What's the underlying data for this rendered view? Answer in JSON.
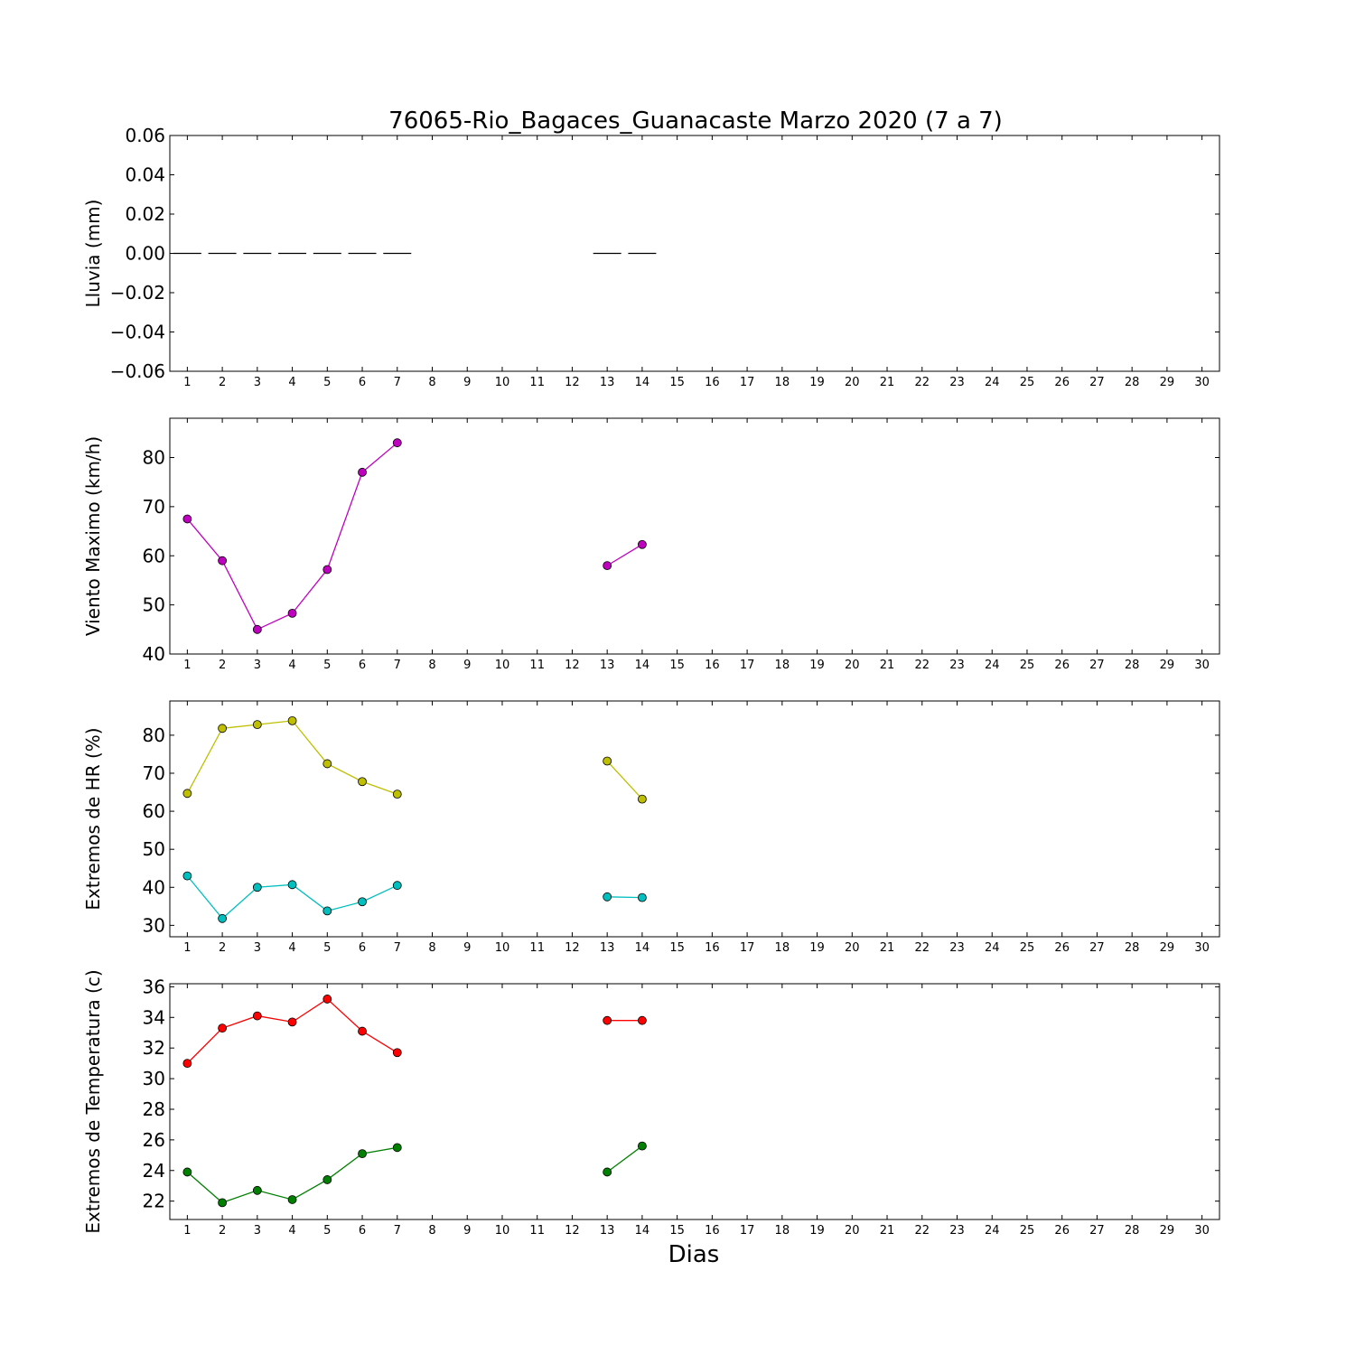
{
  "title": "76065-Rio_Bagaces_Guanacaste Marzo 2020  (7 a 7)",
  "xlabel": "Dias",
  "chart_data": [
    {
      "type": "bar",
      "ylabel": "Lluvia (mm)",
      "x": [
        1,
        2,
        3,
        4,
        5,
        6,
        7,
        13,
        14
      ],
      "values": [
        0,
        0,
        0,
        0,
        0,
        0,
        0,
        0,
        0
      ],
      "xlim": [
        0.5,
        30.5
      ],
      "ylim": [
        -0.06,
        0.06
      ],
      "yticks": [
        "0.06",
        "0.04",
        "0.02",
        "0.00",
        "−0.02",
        "−0.04",
        "−0.06"
      ],
      "ytick_values": [
        0.06,
        0.04,
        0.02,
        0.0,
        -0.02,
        -0.04,
        -0.06
      ],
      "xticks": [
        1,
        2,
        3,
        4,
        5,
        6,
        7,
        8,
        9,
        10,
        11,
        12,
        13,
        14,
        15,
        16,
        17,
        18,
        19,
        20,
        21,
        22,
        23,
        24,
        25,
        26,
        27,
        28,
        29,
        30
      ],
      "color": "#000000"
    },
    {
      "type": "line",
      "ylabel": "Viento Maximo (km/h)",
      "xlim": [
        0.5,
        30.5
      ],
      "ylim": [
        40,
        88
      ],
      "yticks": [
        "40",
        "50",
        "60",
        "70",
        "80"
      ],
      "ytick_values": [
        40,
        50,
        60,
        70,
        80
      ],
      "xticks": [
        1,
        2,
        3,
        4,
        5,
        6,
        7,
        8,
        9,
        10,
        11,
        12,
        13,
        14,
        15,
        16,
        17,
        18,
        19,
        20,
        21,
        22,
        23,
        24,
        25,
        26,
        27,
        28,
        29,
        30
      ],
      "series": [
        {
          "color": "#bf00bf",
          "segments": [
            {
              "x": [
                1,
                2,
                3,
                4,
                5,
                6,
                7
              ],
              "y": [
                67.5,
                59,
                45,
                48.3,
                57.2,
                77,
                83
              ]
            },
            {
              "x": [
                13,
                14
              ],
              "y": [
                58,
                62.3
              ]
            }
          ]
        }
      ]
    },
    {
      "type": "line",
      "ylabel": "Extremos de HR (%)",
      "xlim": [
        0.5,
        30.5
      ],
      "ylim": [
        27,
        89
      ],
      "yticks": [
        "30",
        "40",
        "50",
        "60",
        "70",
        "80"
      ],
      "ytick_values": [
        30,
        40,
        50,
        60,
        70,
        80
      ],
      "xticks": [
        1,
        2,
        3,
        4,
        5,
        6,
        7,
        8,
        9,
        10,
        11,
        12,
        13,
        14,
        15,
        16,
        17,
        18,
        19,
        20,
        21,
        22,
        23,
        24,
        25,
        26,
        27,
        28,
        29,
        30
      ],
      "series": [
        {
          "color": "#bfbf00",
          "segments": [
            {
              "x": [
                1,
                2,
                3,
                4,
                5,
                6,
                7
              ],
              "y": [
                64.7,
                81.8,
                82.8,
                83.8,
                72.5,
                67.8,
                64.5
              ]
            },
            {
              "x": [
                13,
                14
              ],
              "y": [
                73.2,
                63.2
              ]
            }
          ]
        },
        {
          "color": "#00bfbf",
          "segments": [
            {
              "x": [
                1,
                2,
                3,
                4,
                5,
                6,
                7
              ],
              "y": [
                43,
                31.8,
                40,
                40.7,
                33.8,
                36.2,
                40.5
              ]
            },
            {
              "x": [
                13,
                14
              ],
              "y": [
                37.5,
                37.3
              ]
            }
          ]
        }
      ]
    },
    {
      "type": "line",
      "ylabel": "Extremos de Temperatura (c)",
      "xlim": [
        0.5,
        30.5
      ],
      "ylim": [
        20.8,
        36.2
      ],
      "yticks": [
        "22",
        "24",
        "26",
        "28",
        "30",
        "32",
        "34",
        "36"
      ],
      "ytick_values": [
        22,
        24,
        26,
        28,
        30,
        32,
        34,
        36
      ],
      "xticks": [
        1,
        2,
        3,
        4,
        5,
        6,
        7,
        8,
        9,
        10,
        11,
        12,
        13,
        14,
        15,
        16,
        17,
        18,
        19,
        20,
        21,
        22,
        23,
        24,
        25,
        26,
        27,
        28,
        29,
        30
      ],
      "series": [
        {
          "color": "#ff0000",
          "segments": [
            {
              "x": [
                1,
                2,
                3,
                4,
                5,
                6,
                7
              ],
              "y": [
                31,
                33.3,
                34.1,
                33.7,
                35.2,
                33.1,
                31.7
              ]
            },
            {
              "x": [
                13,
                14
              ],
              "y": [
                33.8,
                33.8
              ]
            }
          ]
        },
        {
          "color": "#008000",
          "segments": [
            {
              "x": [
                1,
                2,
                3,
                4,
                5,
                6,
                7
              ],
              "y": [
                23.9,
                21.9,
                22.7,
                22.1,
                23.4,
                25.1,
                25.5
              ]
            },
            {
              "x": [
                13,
                14
              ],
              "y": [
                23.9,
                25.6
              ]
            }
          ]
        }
      ]
    }
  ]
}
